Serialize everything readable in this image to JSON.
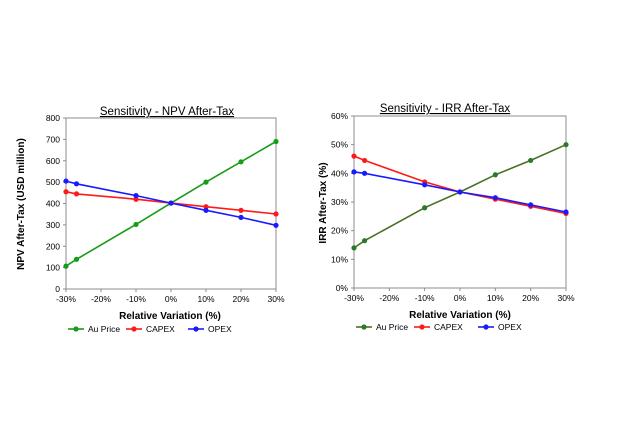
{
  "chart_data": [
    {
      "type": "line",
      "title": "Sensitivity - NPV After-Tax",
      "xlabel": "Relative Variation (%)",
      "ylabel": "NPV After-Tax (USD million)",
      "x_ticks": [
        "-30%",
        "-20%",
        "-10%",
        "0%",
        "10%",
        "20%",
        "30%"
      ],
      "y_ticks": [
        "0",
        "100",
        "200",
        "300",
        "400",
        "500",
        "600",
        "700",
        "800"
      ],
      "xlim": [
        -30,
        30
      ],
      "ylim": [
        0,
        800
      ],
      "grid": false,
      "legend_position": "bottom",
      "series": [
        {
          "name": "Au Price",
          "color": "#179c17",
          "x": [
            -30,
            -27,
            -10,
            0,
            10,
            20,
            30
          ],
          "y": [
            107,
            139,
            302,
            402,
            500,
            595,
            690
          ]
        },
        {
          "name": "CAPEX",
          "color": "#ff1a1a",
          "x": [
            -30,
            -27,
            -10,
            0,
            10,
            20,
            30
          ],
          "y": [
            455,
            445,
            420,
            402,
            385,
            368,
            351
          ]
        },
        {
          "name": "OPEX",
          "color": "#1a1aff",
          "x": [
            -30,
            -27,
            -10,
            0,
            10,
            20,
            30
          ],
          "y": [
            505,
            492,
            437,
            402,
            368,
            335,
            298
          ]
        }
      ]
    },
    {
      "type": "line",
      "title": "Sensitivity - IRR After-Tax",
      "xlabel": "Relative Variation (%)",
      "ylabel": "IRR After-Tax (%)",
      "x_ticks": [
        "-30%",
        "-20%",
        "-10%",
        "0%",
        "10%",
        "20%",
        "30%"
      ],
      "y_ticks": [
        "0%",
        "10%",
        "20%",
        "30%",
        "40%",
        "50%",
        "60%"
      ],
      "xlim": [
        -30,
        30
      ],
      "ylim": [
        0,
        60
      ],
      "grid": false,
      "legend_position": "bottom",
      "series": [
        {
          "name": "Au Price",
          "color": "#4a7023",
          "marker_color": "#2a7a2a",
          "x": [
            -30,
            -27,
            -10,
            0,
            10,
            20,
            30
          ],
          "y": [
            14,
            16.5,
            28,
            33.5,
            39.5,
            44.5,
            50
          ]
        },
        {
          "name": "CAPEX",
          "color": "#ff1a1a",
          "x": [
            -30,
            -27,
            -10,
            0,
            10,
            20,
            30
          ],
          "y": [
            46,
            44.5,
            37,
            33.5,
            31,
            28.5,
            26
          ]
        },
        {
          "name": "OPEX",
          "color": "#1a1aff",
          "x": [
            -30,
            -27,
            -10,
            0,
            10,
            20,
            30
          ],
          "y": [
            40.5,
            40,
            36,
            33.5,
            31.5,
            29,
            26.5
          ]
        }
      ]
    }
  ]
}
